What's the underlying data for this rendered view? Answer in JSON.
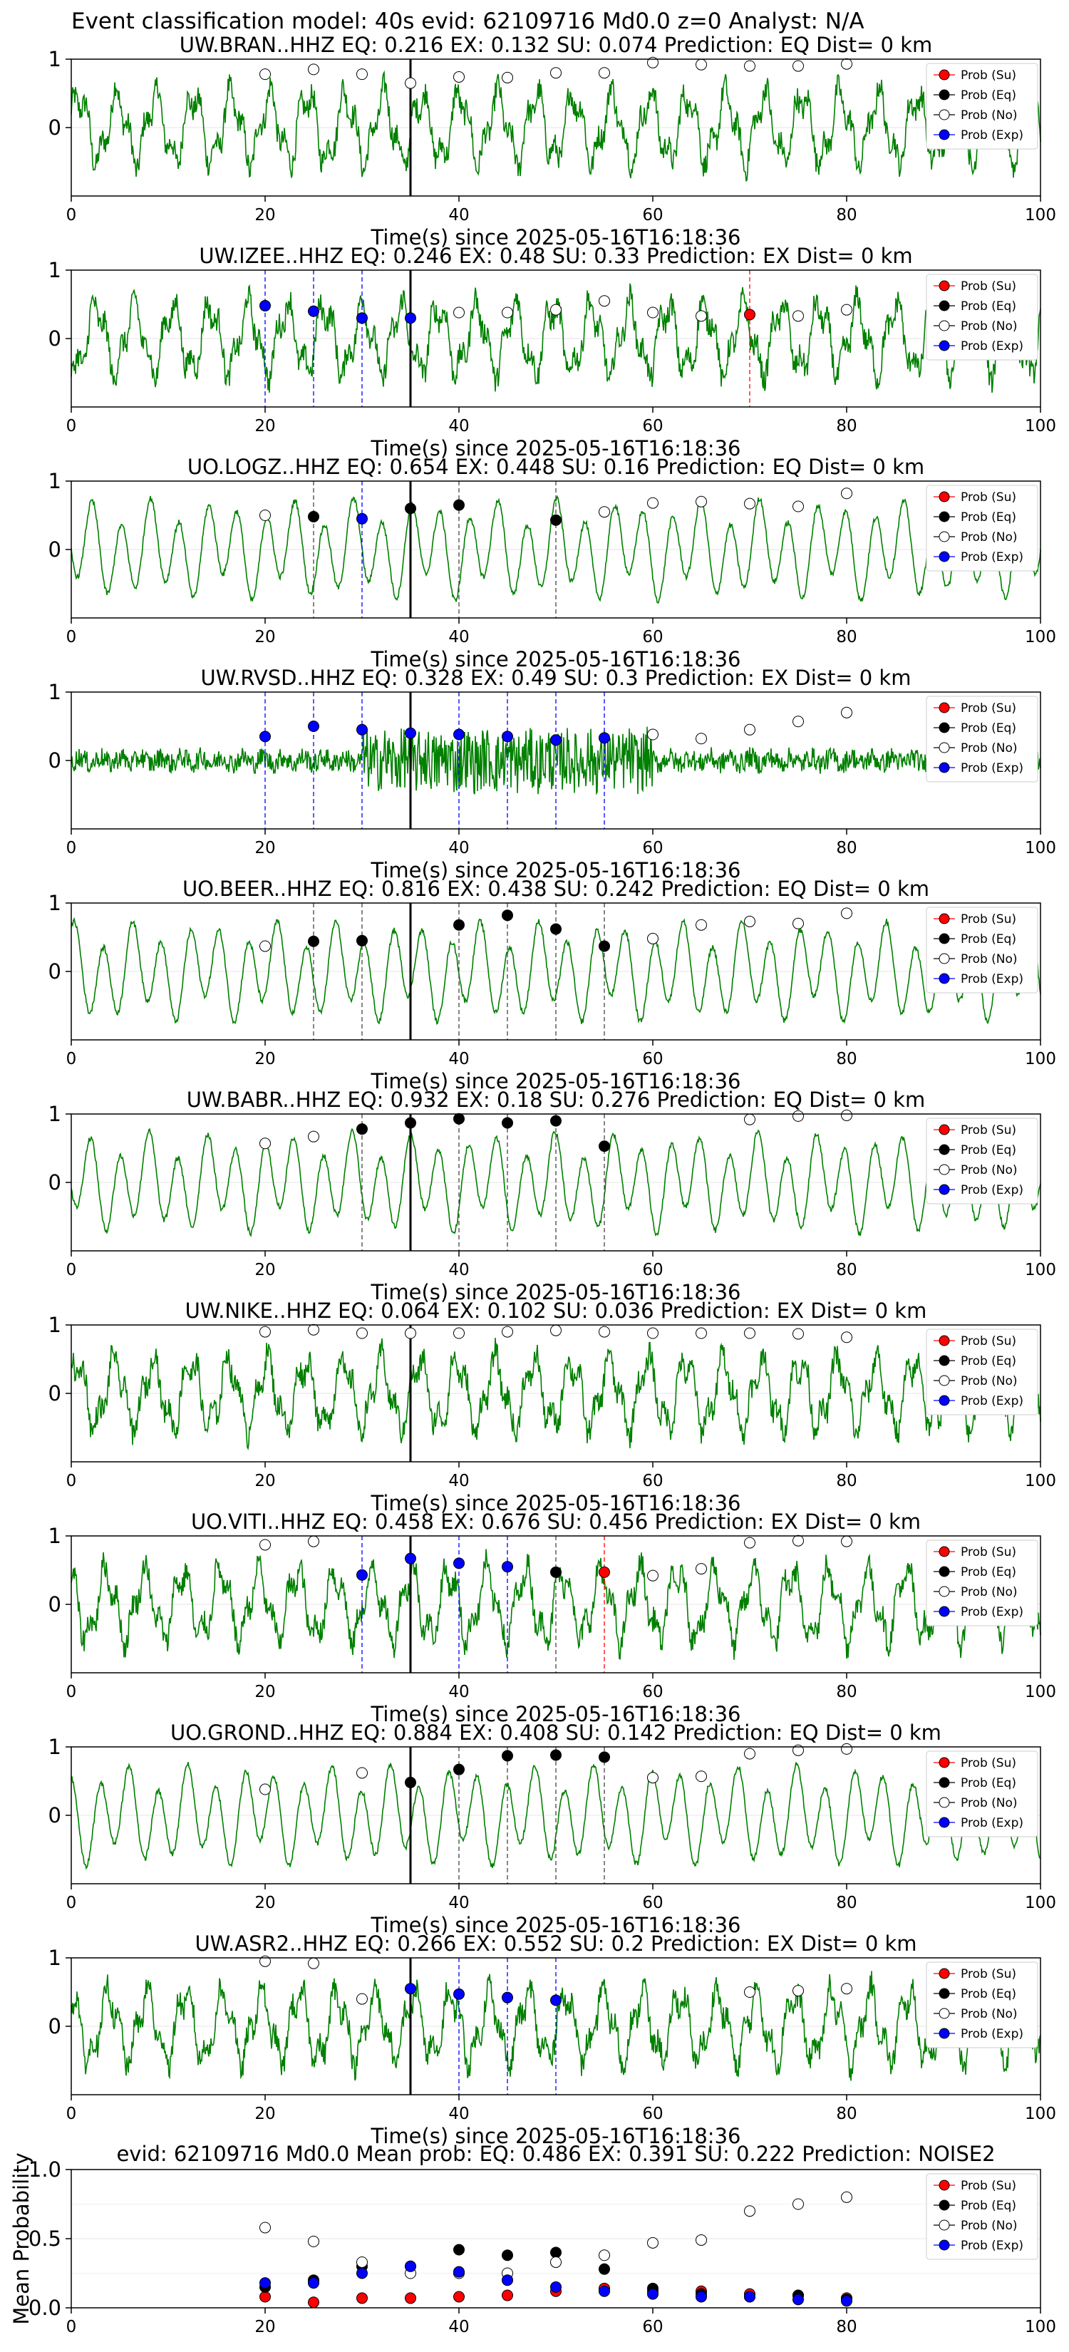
{
  "figure": {
    "title": "Event classification model: 40s evid: 62109716 Md0.0 z=0 Analyst: N/A",
    "xlabel": "Time(s) since 2025-05-16T16:18:36",
    "legend_entries": [
      "Prob (Su)",
      "Prob (Eq)",
      "Prob (No)",
      "Prob (Exp)"
    ],
    "colors": {
      "trace": "#008000",
      "su": "#ff0000",
      "eq": "#000000",
      "no": "#ffffff",
      "exp": "#0000ff",
      "marker_line": "#000000",
      "exp_line": "#0000ff",
      "eq_line": "#444444",
      "su_line": "#ff0000",
      "grid": "#e6e6e6"
    }
  },
  "chart_data": {
    "type": "line",
    "xlim": [
      0,
      100
    ],
    "xticks": [
      0,
      20,
      40,
      60,
      80,
      100
    ],
    "station_ylim": [
      -1,
      1
    ],
    "station_yticks": [
      0,
      1
    ],
    "pick_time": 35,
    "window_times": [
      20,
      25,
      30,
      35,
      40,
      45,
      50,
      55,
      60,
      65,
      70,
      75,
      80
    ],
    "stations": [
      {
        "title": "UW.BRAN..HHZ    EQ: 0.216   EX: 0.132   SU: 0.074    Prediction: EQ     Dist= 0 km",
        "style": "noisy",
        "points": [
          {
            "t": 20,
            "p": 0.78,
            "c": "no"
          },
          {
            "t": 25,
            "p": 0.85,
            "c": "no"
          },
          {
            "t": 30,
            "p": 0.78,
            "c": "no"
          },
          {
            "t": 35,
            "p": 0.65,
            "c": "no"
          },
          {
            "t": 40,
            "p": 0.74,
            "c": "no"
          },
          {
            "t": 45,
            "p": 0.73,
            "c": "no"
          },
          {
            "t": 50,
            "p": 0.8,
            "c": "no"
          },
          {
            "t": 55,
            "p": 0.8,
            "c": "no"
          },
          {
            "t": 60,
            "p": 0.95,
            "c": "no"
          },
          {
            "t": 65,
            "p": 0.92,
            "c": "no"
          },
          {
            "t": 70,
            "p": 0.9,
            "c": "no"
          },
          {
            "t": 75,
            "p": 0.9,
            "c": "no"
          },
          {
            "t": 80,
            "p": 0.93,
            "c": "no"
          }
        ]
      },
      {
        "title": "UW.IZEE..HHZ    EQ: 0.246   EX: 0.48   SU: 0.33    Prediction: EX     Dist= 0 km",
        "style": "noisy",
        "points": [
          {
            "t": 20,
            "p": 0.48,
            "c": "exp"
          },
          {
            "t": 25,
            "p": 0.4,
            "c": "exp"
          },
          {
            "t": 30,
            "p": 0.3,
            "c": "exp"
          },
          {
            "t": 35,
            "p": 0.3,
            "c": "exp"
          },
          {
            "t": 40,
            "p": 0.38,
            "c": "no"
          },
          {
            "t": 45,
            "p": 0.38,
            "c": "no"
          },
          {
            "t": 50,
            "p": 0.42,
            "c": "no"
          },
          {
            "t": 55,
            "p": 0.55,
            "c": "no"
          },
          {
            "t": 60,
            "p": 0.38,
            "c": "no"
          },
          {
            "t": 65,
            "p": 0.33,
            "c": "no"
          },
          {
            "t": 70,
            "p": 0.35,
            "c": "su"
          },
          {
            "t": 75,
            "p": 0.33,
            "c": "no"
          },
          {
            "t": 80,
            "p": 0.42,
            "c": "no"
          }
        ]
      },
      {
        "title": "UO.LOGZ..HHZ    EQ: 0.654   EX: 0.448   SU: 0.16    Prediction: EQ     Dist= 0 km",
        "style": "smooth",
        "points": [
          {
            "t": 20,
            "p": 0.5,
            "c": "no"
          },
          {
            "t": 25,
            "p": 0.48,
            "c": "eq"
          },
          {
            "t": 30,
            "p": 0.45,
            "c": "exp"
          },
          {
            "t": 35,
            "p": 0.6,
            "c": "eq"
          },
          {
            "t": 40,
            "p": 0.65,
            "c": "eq"
          },
          {
            "t": 50,
            "p": 0.43,
            "c": "eq"
          },
          {
            "t": 55,
            "p": 0.55,
            "c": "no"
          },
          {
            "t": 60,
            "p": 0.68,
            "c": "no"
          },
          {
            "t": 65,
            "p": 0.7,
            "c": "no"
          },
          {
            "t": 70,
            "p": 0.67,
            "c": "no"
          },
          {
            "t": 75,
            "p": 0.63,
            "c": "no"
          },
          {
            "t": 80,
            "p": 0.82,
            "c": "no"
          }
        ]
      },
      {
        "title": "UW.RVSD..HHZ    EQ: 0.328   EX: 0.49   SU: 0.3    Prediction: EX     Dist= 0 km",
        "style": "burst",
        "points": [
          {
            "t": 20,
            "p": 0.35,
            "c": "exp"
          },
          {
            "t": 25,
            "p": 0.5,
            "c": "exp"
          },
          {
            "t": 30,
            "p": 0.45,
            "c": "exp"
          },
          {
            "t": 35,
            "p": 0.4,
            "c": "exp"
          },
          {
            "t": 40,
            "p": 0.38,
            "c": "exp"
          },
          {
            "t": 45,
            "p": 0.35,
            "c": "exp"
          },
          {
            "t": 50,
            "p": 0.3,
            "c": "exp"
          },
          {
            "t": 55,
            "p": 0.33,
            "c": "exp"
          },
          {
            "t": 60,
            "p": 0.38,
            "c": "no"
          },
          {
            "t": 65,
            "p": 0.32,
            "c": "no"
          },
          {
            "t": 70,
            "p": 0.45,
            "c": "no"
          },
          {
            "t": 75,
            "p": 0.57,
            "c": "no"
          },
          {
            "t": 80,
            "p": 0.7,
            "c": "no"
          }
        ]
      },
      {
        "title": "UO.BEER..HHZ    EQ: 0.816   EX: 0.438   SU: 0.242    Prediction: EQ     Dist= 0 km",
        "style": "smooth",
        "points": [
          {
            "t": 20,
            "p": 0.37,
            "c": "no"
          },
          {
            "t": 25,
            "p": 0.44,
            "c": "eq"
          },
          {
            "t": 30,
            "p": 0.45,
            "c": "eq"
          },
          {
            "t": 40,
            "p": 0.68,
            "c": "eq"
          },
          {
            "t": 45,
            "p": 0.82,
            "c": "eq"
          },
          {
            "t": 50,
            "p": 0.62,
            "c": "eq"
          },
          {
            "t": 55,
            "p": 0.37,
            "c": "eq"
          },
          {
            "t": 60,
            "p": 0.48,
            "c": "no"
          },
          {
            "t": 65,
            "p": 0.68,
            "c": "no"
          },
          {
            "t": 70,
            "p": 0.73,
            "c": "no"
          },
          {
            "t": 75,
            "p": 0.7,
            "c": "no"
          },
          {
            "t": 80,
            "p": 0.85,
            "c": "no"
          }
        ]
      },
      {
        "title": "UW.BABR..HHZ    EQ: 0.932   EX: 0.18   SU: 0.276    Prediction: EQ     Dist= 0 km",
        "style": "smooth",
        "points": [
          {
            "t": 20,
            "p": 0.57,
            "c": "no"
          },
          {
            "t": 25,
            "p": 0.67,
            "c": "no"
          },
          {
            "t": 30,
            "p": 0.78,
            "c": "eq"
          },
          {
            "t": 35,
            "p": 0.87,
            "c": "eq"
          },
          {
            "t": 40,
            "p": 0.93,
            "c": "eq"
          },
          {
            "t": 45,
            "p": 0.87,
            "c": "eq"
          },
          {
            "t": 50,
            "p": 0.9,
            "c": "eq"
          },
          {
            "t": 55,
            "p": 0.53,
            "c": "eq"
          },
          {
            "t": 70,
            "p": 0.92,
            "c": "no"
          },
          {
            "t": 75,
            "p": 0.97,
            "c": "no"
          },
          {
            "t": 80,
            "p": 0.98,
            "c": "no"
          }
        ]
      },
      {
        "title": "UW.NIKE..HHZ    EQ: 0.064   EX: 0.102   SU: 0.036    Prediction: EX     Dist= 0 km",
        "style": "noisy",
        "points": [
          {
            "t": 20,
            "p": 0.9,
            "c": "no"
          },
          {
            "t": 25,
            "p": 0.93,
            "c": "no"
          },
          {
            "t": 30,
            "p": 0.88,
            "c": "no"
          },
          {
            "t": 35,
            "p": 0.88,
            "c": "no"
          },
          {
            "t": 40,
            "p": 0.88,
            "c": "no"
          },
          {
            "t": 45,
            "p": 0.9,
            "c": "no"
          },
          {
            "t": 50,
            "p": 0.92,
            "c": "no"
          },
          {
            "t": 55,
            "p": 0.9,
            "c": "no"
          },
          {
            "t": 60,
            "p": 0.88,
            "c": "no"
          },
          {
            "t": 65,
            "p": 0.88,
            "c": "no"
          },
          {
            "t": 70,
            "p": 0.88,
            "c": "no"
          },
          {
            "t": 75,
            "p": 0.87,
            "c": "no"
          },
          {
            "t": 80,
            "p": 0.82,
            "c": "no"
          }
        ]
      },
      {
        "title": "UO.VITI..HHZ    EQ: 0.458   EX: 0.676   SU: 0.456    Prediction: EX     Dist= 0 km",
        "style": "noisy",
        "points": [
          {
            "t": 20,
            "p": 0.87,
            "c": "no"
          },
          {
            "t": 25,
            "p": 0.92,
            "c": "no"
          },
          {
            "t": 30,
            "p": 0.43,
            "c": "exp"
          },
          {
            "t": 35,
            "p": 0.67,
            "c": "exp"
          },
          {
            "t": 40,
            "p": 0.6,
            "c": "exp"
          },
          {
            "t": 45,
            "p": 0.55,
            "c": "exp"
          },
          {
            "t": 50,
            "p": 0.47,
            "c": "eq"
          },
          {
            "t": 55,
            "p": 0.47,
            "c": "su"
          },
          {
            "t": 60,
            "p": 0.42,
            "c": "no"
          },
          {
            "t": 65,
            "p": 0.52,
            "c": "no"
          },
          {
            "t": 70,
            "p": 0.9,
            "c": "no"
          },
          {
            "t": 75,
            "p": 0.93,
            "c": "no"
          },
          {
            "t": 80,
            "p": 0.92,
            "c": "no"
          }
        ]
      },
      {
        "title": "UO.GROND..HHZ    EQ: 0.884   EX: 0.408   SU: 0.142    Prediction: EQ     Dist= 0 km",
        "style": "smooth",
        "points": [
          {
            "t": 20,
            "p": 0.38,
            "c": "no"
          },
          {
            "t": 30,
            "p": 0.62,
            "c": "no"
          },
          {
            "t": 35,
            "p": 0.48,
            "c": "eq"
          },
          {
            "t": 40,
            "p": 0.67,
            "c": "eq"
          },
          {
            "t": 45,
            "p": 0.87,
            "c": "eq"
          },
          {
            "t": 50,
            "p": 0.88,
            "c": "eq"
          },
          {
            "t": 55,
            "p": 0.85,
            "c": "eq"
          },
          {
            "t": 60,
            "p": 0.55,
            "c": "no"
          },
          {
            "t": 65,
            "p": 0.57,
            "c": "no"
          },
          {
            "t": 70,
            "p": 0.9,
            "c": "no"
          },
          {
            "t": 75,
            "p": 0.95,
            "c": "no"
          },
          {
            "t": 80,
            "p": 0.97,
            "c": "no"
          }
        ]
      },
      {
        "title": "UW.ASR2..HHZ    EQ: 0.266   EX: 0.552   SU: 0.2    Prediction: EX     Dist= 0 km",
        "style": "noisy",
        "points": [
          {
            "t": 20,
            "p": 0.95,
            "c": "no"
          },
          {
            "t": 25,
            "p": 0.92,
            "c": "no"
          },
          {
            "t": 30,
            "p": 0.4,
            "c": "no"
          },
          {
            "t": 35,
            "p": 0.55,
            "c": "exp"
          },
          {
            "t": 40,
            "p": 0.47,
            "c": "exp"
          },
          {
            "t": 45,
            "p": 0.42,
            "c": "exp"
          },
          {
            "t": 50,
            "p": 0.38,
            "c": "exp"
          },
          {
            "t": 70,
            "p": 0.5,
            "c": "no"
          },
          {
            "t": 75,
            "p": 0.52,
            "c": "no"
          },
          {
            "t": 80,
            "p": 0.55,
            "c": "no"
          }
        ]
      }
    ],
    "summary": {
      "title": "evid: 62109716  Md0.0   Mean prob:    EQ: 0.486   EX: 0.391   SU: 0.222    Prediction: NOISE2",
      "ylabel": "Mean Probability",
      "ylim": [
        0,
        1.0
      ],
      "yticks": [
        0.0,
        0.5,
        1.0
      ],
      "series": [
        {
          "name": "Prob (Su)",
          "key": "su",
          "x": [
            20,
            25,
            30,
            35,
            40,
            45,
            50,
            55,
            60,
            65,
            70,
            75,
            80
          ],
          "y": [
            0.08,
            0.04,
            0.07,
            0.07,
            0.08,
            0.09,
            0.12,
            0.14,
            0.12,
            0.12,
            0.1,
            0.09,
            0.07
          ]
        },
        {
          "name": "Prob (Eq)",
          "key": "eq",
          "x": [
            20,
            25,
            30,
            35,
            40,
            45,
            50,
            55,
            60,
            65,
            70,
            75,
            80
          ],
          "y": [
            0.15,
            0.2,
            0.3,
            0.3,
            0.42,
            0.38,
            0.4,
            0.28,
            0.14,
            0.1,
            0.08,
            0.09,
            0.06
          ]
        },
        {
          "name": "Prob (No)",
          "key": "no",
          "x": [
            20,
            25,
            30,
            35,
            40,
            45,
            50,
            55,
            60,
            65,
            70,
            75,
            80
          ],
          "y": [
            0.58,
            0.48,
            0.33,
            0.25,
            0.25,
            0.25,
            0.33,
            0.38,
            0.47,
            0.49,
            0.7,
            0.75,
            0.8
          ]
        },
        {
          "name": "Prob (Exp)",
          "key": "exp",
          "x": [
            20,
            25,
            30,
            35,
            40,
            45,
            50,
            55,
            60,
            65,
            70,
            75,
            80
          ],
          "y": [
            0.18,
            0.18,
            0.25,
            0.3,
            0.26,
            0.2,
            0.15,
            0.12,
            0.1,
            0.08,
            0.08,
            0.06,
            0.05
          ]
        }
      ]
    }
  }
}
